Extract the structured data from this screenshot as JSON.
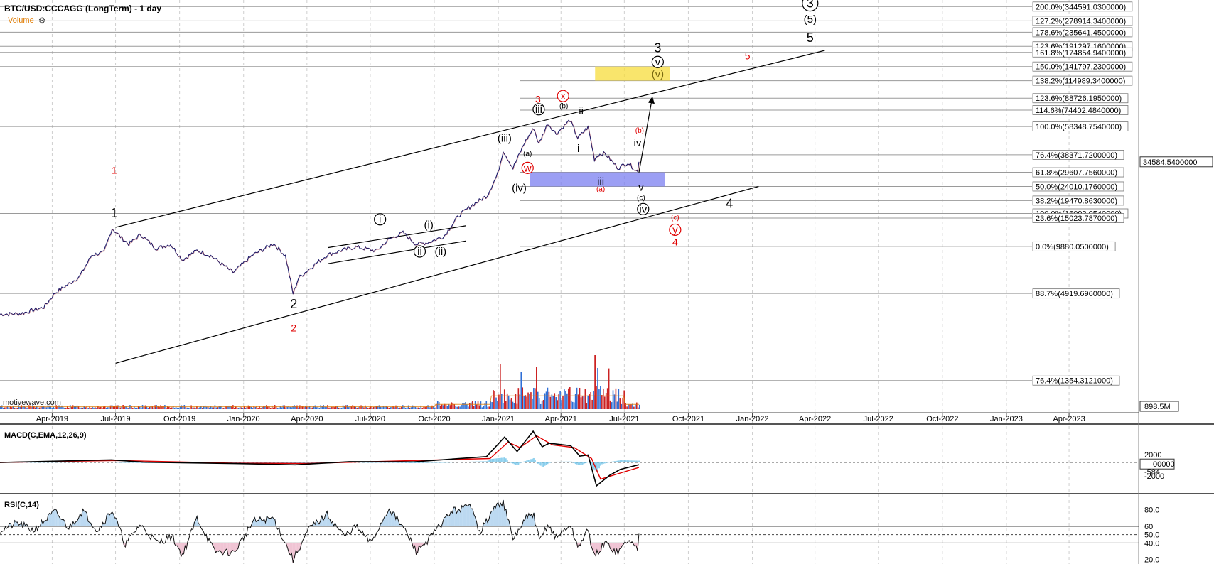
{
  "header": {
    "title": "BTC/USD:CCCAGG (LongTerm) - 1 day",
    "volume_label": "Volume",
    "watermark": "motivewave.com"
  },
  "indicators": {
    "macd_title": "MACD(C,EMA,12,26,9)",
    "rsi_title": "RSI(C,14)"
  },
  "colors": {
    "wave_black": "#000000",
    "wave_red": "#e00000",
    "target_box": "#f7dc3b",
    "support_box": "#7b7ff0",
    "volume_up": "#2f6fd6",
    "volume_down": "#cc2222",
    "volume_avg": "#e07b00",
    "macd_line": "#000000",
    "signal_line": "#e00000",
    "histogram": "#6ec3e8",
    "rsi_fill": "#bcd9f1"
  },
  "chart_data": {
    "type": "line",
    "title": "BTC/USD:CCCAGG (LongTerm) - 1 day",
    "scale": "log",
    "x_type": "date",
    "xlim": [
      "2019-01-16",
      "2023-07-10"
    ],
    "ylim": [
      850,
      380000
    ],
    "x_ticks": [
      "Apr-2019",
      "Jul-2019",
      "Oct-2019",
      "Jan-2020",
      "Apr-2020",
      "Jul-2020",
      "Oct-2020",
      "Jan-2021",
      "Apr-2021",
      "Jul-2021",
      "Oct-2021",
      "Jan-2022",
      "Apr-2022",
      "Jul-2022",
      "Oct-2022",
      "Jan-2023",
      "Apr-2023"
    ],
    "x_tick_dates": [
      "2019-04-01",
      "2019-07-01",
      "2019-10-01",
      "2020-01-01",
      "2020-04-01",
      "2020-07-01",
      "2020-10-01",
      "2021-01-01",
      "2021-04-01",
      "2021-07-01",
      "2021-10-01",
      "2022-01-01",
      "2022-04-01",
      "2022-07-01",
      "2022-10-01",
      "2023-01-01",
      "2023-04-01"
    ],
    "price_series": {
      "name": "BTC/USD",
      "points": [
        [
          "2019-01-16",
          3620
        ],
        [
          "2019-02-15",
          3650
        ],
        [
          "2019-03-20",
          4020
        ],
        [
          "2019-04-05",
          4950
        ],
        [
          "2019-05-10",
          6300
        ],
        [
          "2019-05-28",
          8700
        ],
        [
          "2019-06-14",
          9000
        ],
        [
          "2019-06-26",
          12900
        ],
        [
          "2019-07-08",
          11400
        ],
        [
          "2019-07-20",
          10200
        ],
        [
          "2019-08-06",
          11800
        ],
        [
          "2019-08-28",
          9600
        ],
        [
          "2019-09-18",
          10200
        ],
        [
          "2019-10-05",
          8100
        ],
        [
          "2019-10-26",
          9300
        ],
        [
          "2019-11-15",
          8600
        ],
        [
          "2019-12-17",
          6700
        ],
        [
          "2020-01-14",
          8700
        ],
        [
          "2020-02-13",
          10300
        ],
        [
          "2020-03-01",
          8600
        ],
        [
          "2020-03-12",
          4900
        ],
        [
          "2020-03-20",
          6200
        ],
        [
          "2020-04-08",
          7300
        ],
        [
          "2020-04-30",
          8700
        ],
        [
          "2020-05-20",
          9300
        ],
        [
          "2020-06-10",
          9800
        ],
        [
          "2020-07-10",
          9250
        ],
        [
          "2020-07-28",
          11000
        ],
        [
          "2020-08-17",
          12100
        ],
        [
          "2020-09-05",
          10200
        ],
        [
          "2020-09-23",
          10500
        ],
        [
          "2020-10-15",
          11500
        ],
        [
          "2020-11-05",
          15600
        ],
        [
          "2020-11-25",
          18300
        ],
        [
          "2020-12-16",
          21000
        ],
        [
          "2020-12-31",
          28900
        ],
        [
          "2021-01-08",
          40800
        ],
        [
          "2021-01-22",
          31500
        ],
        [
          "2021-02-08",
          46200
        ],
        [
          "2021-02-21",
          57000
        ],
        [
          "2021-02-28",
          45000
        ],
        [
          "2021-03-13",
          61200
        ],
        [
          "2021-03-25",
          52500
        ],
        [
          "2021-04-14",
          64300
        ],
        [
          "2021-04-25",
          49100
        ],
        [
          "2021-05-10",
          58000
        ],
        [
          "2021-05-19",
          36000
        ],
        [
          "2021-05-25",
          38500
        ],
        [
          "2021-06-03",
          39200
        ],
        [
          "2021-06-22",
          31500
        ],
        [
          "2021-07-06",
          34200
        ],
        [
          "2021-07-20",
          29800
        ],
        [
          "2021-07-22",
          34584
        ]
      ]
    },
    "last_price": "34584.5400000",
    "fib_levels": [
      {
        "label": "200.0%(344591.0300000)",
        "value": 344591.03
      },
      {
        "label": "127.2%(278914.3400000)",
        "value": 278914.34
      },
      {
        "label": "178.6%(235641.4500000)",
        "value": 235641.45
      },
      {
        "label": "123.6%(191297.1600000)",
        "value": 191297.16
      },
      {
        "label": "161.8%(174854.9400000)",
        "value": 174854.94
      },
      {
        "label": "150.0%(141797.2300000)",
        "value": 141797.23
      },
      {
        "label": "138.2%(114989.3400000)",
        "value": 114989.34
      },
      {
        "label": "123.6%(88726.1950000)",
        "value": 88726.195
      },
      {
        "label": "114.6%(74402.4840000)",
        "value": 74402.484
      },
      {
        "label": "100.0%(58348.7540000)",
        "value": 58348.754
      },
      {
        "label": "76.4%(38371.7200000)",
        "value": 38371.72
      },
      {
        "label": "61.8%(29607.7560000)",
        "value": 29607.756
      },
      {
        "label": "50.0%(24010.1760000)",
        "value": 24010.176
      },
      {
        "label": "38.2%(19470.8630000)",
        "value": 19470.863
      },
      {
        "label": "100.0%(16093.0540000)",
        "value": 16093.054
      },
      {
        "label": "23.6%(15023.7870000)",
        "value": 15023.787
      },
      {
        "label": "0.0%(9880.0500000)",
        "value": 9880.05
      },
      {
        "label": "88.7%(4919.6960000)",
        "value": 4919.696
      },
      {
        "label": "76.4%(1354.3121000)",
        "value": 1354.3121
      }
    ],
    "target_box": {
      "from": "2021-05-20",
      "to": "2021-09-05",
      "low": 114989.34,
      "high": 141797.23
    },
    "support_box": {
      "from": "2021-02-15",
      "to": "2021-08-28",
      "low": 24010.176,
      "high": 29607.756
    },
    "trend_lines": [
      {
        "name": "upper-channel",
        "from": [
          "2019-07-01",
          13100
        ],
        "to": [
          "2022-04-15",
          180000
        ]
      },
      {
        "name": "lower-channel",
        "from": [
          "2019-07-01",
          1750
        ],
        "to": [
          "2022-01-10",
          24000
        ]
      },
      {
        "name": "small-channel-upper",
        "from": [
          "2020-05-01",
          9700
        ],
        "to": [
          "2020-11-15",
          13400
        ]
      },
      {
        "name": "small-channel-lower",
        "from": [
          "2020-05-01",
          7650
        ],
        "to": [
          "2020-11-15",
          10700
        ]
      },
      {
        "name": "projection-arrow",
        "from": [
          "2021-07-22",
          29500
        ],
        "to": [
          "2021-08-10",
          88726
        ]
      }
    ],
    "wave_labels": [
      {
        "text": "1",
        "date": "2019-06-29",
        "price": 29000,
        "color": "red",
        "size": "small"
      },
      {
        "text": "1",
        "date": "2019-06-29",
        "price": 15200,
        "color": "black",
        "size": "large"
      },
      {
        "text": "2",
        "date": "2020-03-13",
        "price": 3950,
        "color": "black",
        "size": "large"
      },
      {
        "text": "2",
        "date": "2020-03-13",
        "price": 2800,
        "color": "red",
        "size": "small"
      },
      {
        "text": "i",
        "date": "2020-07-15",
        "price": 14000,
        "color": "black",
        "circle": true
      },
      {
        "text": "(i)",
        "date": "2020-09-23",
        "price": 12900,
        "color": "black"
      },
      {
        "text": "ii",
        "date": "2020-09-10",
        "price": 8700,
        "color": "black",
        "circle": true
      },
      {
        "text": "(ii)",
        "date": "2020-10-10",
        "price": 8700,
        "color": "black"
      },
      {
        "text": "(iii)",
        "date": "2021-01-10",
        "price": 46500,
        "color": "black"
      },
      {
        "text": "(iv)",
        "date": "2021-01-31",
        "price": 22300,
        "color": "black"
      },
      {
        "text": "iii",
        "date": "2021-02-28",
        "price": 71500,
        "color": "black",
        "circle": true
      },
      {
        "text": "3",
        "date": "2021-02-27",
        "price": 83000,
        "color": "red",
        "size": "small"
      },
      {
        "text": "(a)",
        "date": "2021-02-12",
        "price": 37800,
        "color": "black",
        "size": "tiny"
      },
      {
        "text": "w",
        "date": "2021-02-12",
        "price": 30000,
        "color": "red",
        "circle": true
      },
      {
        "text": "(b)",
        "date": "2021-04-05",
        "price": 76500,
        "color": "black",
        "size": "tiny"
      },
      {
        "text": "x",
        "date": "2021-04-04",
        "price": 87000,
        "color": "red",
        "circle": true
      },
      {
        "text": "ii",
        "date": "2021-04-30",
        "price": 70000,
        "color": "black"
      },
      {
        "text": "i",
        "date": "2021-04-26",
        "price": 40000,
        "color": "black"
      },
      {
        "text": "iii",
        "date": "2021-05-28",
        "price": 24500,
        "color": "black"
      },
      {
        "text": "(a)",
        "date": "2021-05-28",
        "price": 22300,
        "color": "red",
        "size": "tiny"
      },
      {
        "text": "(b)",
        "date": "2021-07-23",
        "price": 53000,
        "color": "red",
        "size": "tiny"
      },
      {
        "text": "iv",
        "date": "2021-07-20",
        "price": 43500,
        "color": "black"
      },
      {
        "text": "v",
        "date": "2021-07-25",
        "price": 22500,
        "color": "black"
      },
      {
        "text": "(c)",
        "date": "2021-07-25",
        "price": 19700,
        "color": "black",
        "size": "tiny"
      },
      {
        "text": "iv",
        "date": "2021-07-28",
        "price": 16300,
        "color": "black",
        "circle": true
      },
      {
        "text": "3",
        "date": "2021-08-18",
        "price": 175000,
        "color": "black",
        "size": "large"
      },
      {
        "text": "v",
        "date": "2021-08-18",
        "price": 144000,
        "color": "black",
        "circle": true
      },
      {
        "text": "(v)",
        "date": "2021-08-18",
        "price": 121000,
        "color": "olive"
      },
      {
        "text": "5",
        "date": "2021-12-25",
        "price": 158000,
        "color": "red",
        "size": "small"
      },
      {
        "text": "(c)",
        "date": "2021-09-12",
        "price": 14600,
        "color": "red",
        "size": "tiny"
      },
      {
        "text": "y",
        "date": "2021-09-12",
        "price": 12000,
        "color": "red",
        "circle": true
      },
      {
        "text": "4",
        "date": "2021-09-12",
        "price": 10000,
        "color": "red",
        "size": "small"
      },
      {
        "text": "4",
        "date": "2021-11-29",
        "price": 17500,
        "color": "black",
        "size": "large"
      },
      {
        "text": "3",
        "date": "2022-03-25",
        "price": 340000,
        "color": "black",
        "size": "large",
        "circle": true
      },
      {
        "text": "(5)",
        "date": "2022-03-25",
        "price": 272000,
        "color": "black"
      },
      {
        "text": "5",
        "date": "2022-03-25",
        "price": 204000,
        "color": "black",
        "size": "large"
      }
    ],
    "volume": {
      "axis_label": "898.5M",
      "series": {
        "name": "Volume",
        "note": "daily bars, higher from 2021-01 through 2021-07"
      }
    },
    "macd": {
      "axis_ticks": [
        "2000",
        "-2000"
      ],
      "current_label": "-584",
      "value_label": "00000",
      "macd_points": [
        [
          "2019-01-16",
          0
        ],
        [
          "2019-06-25",
          650
        ],
        [
          "2019-08-10",
          80
        ],
        [
          "2019-12-20",
          -300
        ],
        [
          "2020-03-15",
          -600
        ],
        [
          "2020-06-01",
          200
        ],
        [
          "2020-09-01",
          150
        ],
        [
          "2020-12-15",
          1500
        ],
        [
          "2021-01-10",
          6500
        ],
        [
          "2021-01-28",
          2800
        ],
        [
          "2021-02-20",
          8000
        ],
        [
          "2021-03-05",
          4000
        ],
        [
          "2021-03-15",
          4900
        ],
        [
          "2021-04-15",
          4300
        ],
        [
          "2021-04-28",
          1600
        ],
        [
          "2021-05-10",
          1900
        ],
        [
          "2021-05-22",
          -6000
        ],
        [
          "2021-06-10",
          -3300
        ],
        [
          "2021-06-25",
          -1800
        ],
        [
          "2021-07-22",
          -584
        ]
      ],
      "signal_points": [
        [
          "2019-01-16",
          0
        ],
        [
          "2019-07-05",
          500
        ],
        [
          "2019-12-20",
          -200
        ],
        [
          "2020-04-01",
          -250
        ],
        [
          "2020-12-20",
          1000
        ],
        [
          "2021-01-15",
          5200
        ],
        [
          "2021-02-01",
          3800
        ],
        [
          "2021-02-25",
          6800
        ],
        [
          "2021-03-20",
          4500
        ],
        [
          "2021-04-20",
          3800
        ],
        [
          "2021-05-15",
          1000
        ],
        [
          "2021-05-28",
          -4300
        ],
        [
          "2021-06-20",
          -3000
        ],
        [
          "2021-07-22",
          -1300
        ]
      ]
    },
    "rsi": {
      "axis_ticks": [
        "80.0",
        "60",
        "50.0",
        "40.0",
        "20.0"
      ],
      "bands": [
        60,
        50,
        40
      ],
      "points": [
        [
          "2019-01-16",
          55
        ],
        [
          "2019-02-10",
          64
        ],
        [
          "2019-03-05",
          55
        ],
        [
          "2019-04-05",
          78
        ],
        [
          "2019-04-25",
          58
        ],
        [
          "2019-05-15",
          79
        ],
        [
          "2019-06-05",
          55
        ],
        [
          "2019-06-26",
          80
        ],
        [
          "2019-07-15",
          38
        ],
        [
          "2019-08-05",
          62
        ],
        [
          "2019-08-30",
          40
        ],
        [
          "2019-09-20",
          48
        ],
        [
          "2019-10-05",
          25
        ],
        [
          "2019-10-26",
          70
        ],
        [
          "2019-11-20",
          30
        ],
        [
          "2019-12-18",
          28
        ],
        [
          "2020-01-15",
          66
        ],
        [
          "2020-02-13",
          70
        ],
        [
          "2020-03-12",
          20
        ],
        [
          "2020-04-05",
          58
        ],
        [
          "2020-04-30",
          74
        ],
        [
          "2020-05-25",
          48
        ],
        [
          "2020-06-10",
          60
        ],
        [
          "2020-07-02",
          40
        ],
        [
          "2020-07-28",
          82
        ],
        [
          "2020-08-20",
          55
        ],
        [
          "2020-09-05",
          30
        ],
        [
          "2020-09-25",
          46
        ],
        [
          "2020-10-25",
          78
        ],
        [
          "2020-11-25",
          85
        ],
        [
          "2020-12-05",
          52
        ],
        [
          "2020-12-28",
          84
        ],
        [
          "2021-01-08",
          90
        ],
        [
          "2021-01-22",
          44
        ],
        [
          "2021-02-10",
          70
        ],
        [
          "2021-02-21",
          74
        ],
        [
          "2021-03-01",
          42
        ],
        [
          "2021-03-13",
          62
        ],
        [
          "2021-03-25",
          46
        ],
        [
          "2021-04-14",
          62
        ],
        [
          "2021-04-25",
          35
        ],
        [
          "2021-05-10",
          55
        ],
        [
          "2021-05-19",
          23
        ],
        [
          "2021-06-03",
          40
        ],
        [
          "2021-06-22",
          28
        ],
        [
          "2021-07-06",
          44
        ],
        [
          "2021-07-20",
          32
        ],
        [
          "2021-07-22",
          51
        ]
      ]
    }
  }
}
